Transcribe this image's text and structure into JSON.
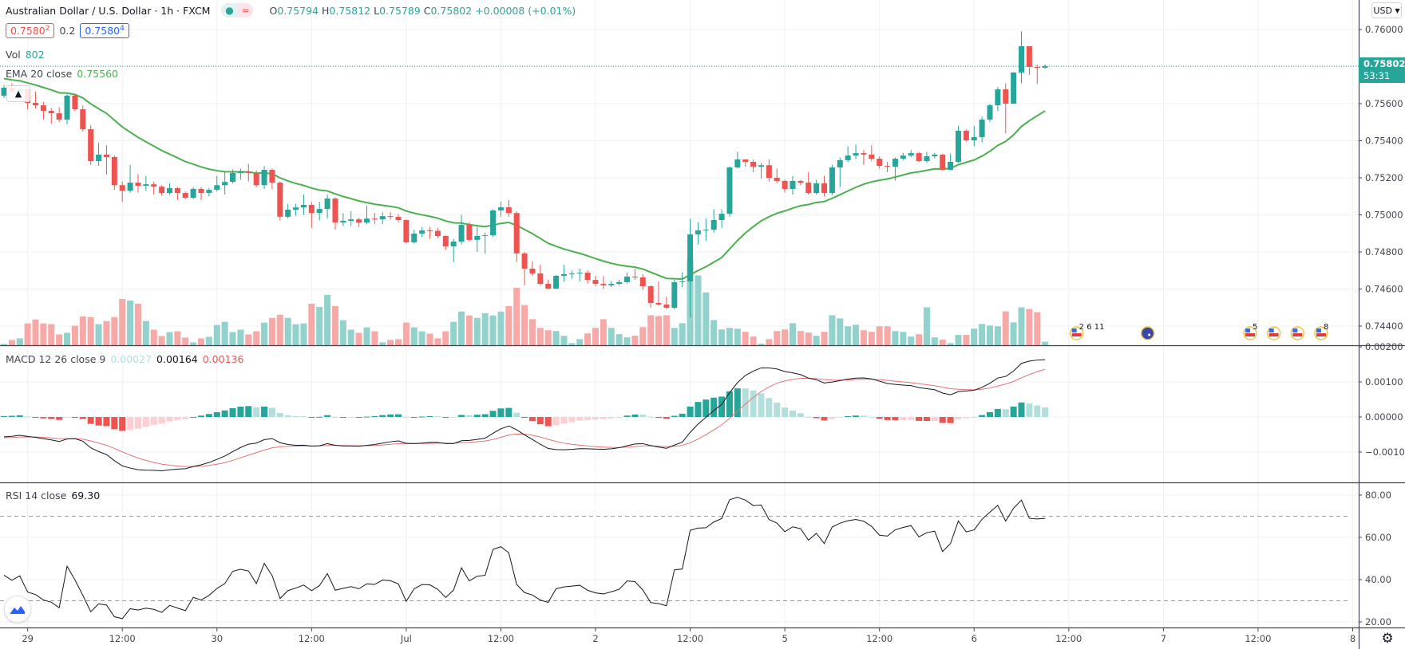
{
  "header": {
    "symbol_title": "Australian Dollar / U.S. Dollar · 1h · FXCM",
    "market_status_icons": [
      "market-open-dot-icon",
      "data-delay-icon"
    ],
    "ohlc": {
      "o_label": "O",
      "o": "0.75794",
      "h_label": "H",
      "h": "0.75812",
      "l_label": "L",
      "l": "0.75789",
      "c_label": "C",
      "c": "0.75802",
      "change": "+0.00008 (+0.01%)"
    },
    "bid": {
      "main": "0.7580",
      "pip": "2"
    },
    "spread": "0.2",
    "ask": {
      "main": "0.7580",
      "pip": "4"
    },
    "vol_label": "Vol",
    "vol_value": "802",
    "ema_label": "EMA 20 close",
    "ema_value": "0.75560"
  },
  "price_axis": {
    "currency_button": "USD",
    "ticks": [
      "0.76000",
      "0.75600",
      "0.75400",
      "0.75200",
      "0.75000",
      "0.74800",
      "0.74600",
      "0.74400"
    ],
    "current_price": "0.75802",
    "countdown": "53:31"
  },
  "macd": {
    "label": "MACD 12 26 close 9",
    "hist": "0.00027",
    "macd": "0.00164",
    "signal": "0.00136",
    "ticks": [
      "0.00200",
      "0.00100",
      "0.00000",
      "−0.00100"
    ]
  },
  "rsi": {
    "label": "RSI 14 close",
    "value": "69.30",
    "ticks": [
      "80.00",
      "60.00",
      "40.00",
      "20.00"
    ],
    "upper_band": 70,
    "lower_band": 30
  },
  "events": [
    {
      "flag": "us",
      "labels": "2 6 11",
      "bar": 136
    },
    {
      "flag": "au",
      "labels": "",
      "bar": 145
    },
    {
      "flag": "us",
      "labels": "5",
      "bar": 158
    },
    {
      "flag": "us",
      "labels": "",
      "bar": 161
    },
    {
      "flag": "us",
      "labels": "",
      "bar": 164
    },
    {
      "flag": "us",
      "labels": "8",
      "bar": 167
    }
  ],
  "colors": {
    "up": "#26a69a",
    "down": "#ef5350",
    "ema": "#4caf50",
    "macd": "#131722",
    "signal": "#e57373",
    "rsi": "#131722",
    "grid": "#eef0f3"
  },
  "chart_data": {
    "type": "candlestick",
    "symbol": "AUDUSD",
    "interval": "1h",
    "time_ticks": [
      {
        "label": "29",
        "bar": 3
      },
      {
        "label": "12:00",
        "bar": 15
      },
      {
        "label": "30",
        "bar": 27
      },
      {
        "label": "12:00",
        "bar": 39
      },
      {
        "label": "Jul",
        "bar": 51
      },
      {
        "label": "12:00",
        "bar": 63
      },
      {
        "label": "2",
        "bar": 75
      },
      {
        "label": "12:00",
        "bar": 87
      },
      {
        "label": "5",
        "bar": 99
      },
      {
        "label": "12:00",
        "bar": 111
      },
      {
        "label": "6",
        "bar": 123
      },
      {
        "label": "12:00",
        "bar": 135
      },
      {
        "label": "7",
        "bar": 147
      },
      {
        "label": "12:00",
        "bar": 159
      },
      {
        "label": "8",
        "bar": 171
      }
    ],
    "ylim": [
      0.7436,
      0.7607
    ],
    "ohlc": [
      [
        0.75643,
        0.757,
        0.7563,
        0.75686
      ],
      [
        0.75686,
        0.7571,
        0.7565,
        0.75665
      ],
      [
        0.75665,
        0.7569,
        0.7564,
        0.75677
      ],
      [
        0.75677,
        0.7569,
        0.7557,
        0.75604
      ],
      [
        0.75604,
        0.75665,
        0.75574,
        0.75591
      ],
      [
        0.75591,
        0.7561,
        0.75514,
        0.75561
      ],
      [
        0.75561,
        0.75575,
        0.75492,
        0.75548
      ],
      [
        0.75548,
        0.7558,
        0.755,
        0.75514
      ],
      [
        0.75514,
        0.7565,
        0.75488,
        0.75643
      ],
      [
        0.75643,
        0.75655,
        0.7556,
        0.7557
      ],
      [
        0.7557,
        0.7559,
        0.7545,
        0.75462
      ],
      [
        0.75462,
        0.75484,
        0.75269,
        0.7529
      ],
      [
        0.7529,
        0.7539,
        0.75264,
        0.75325
      ],
      [
        0.75325,
        0.75376,
        0.75217,
        0.75312
      ],
      [
        0.75312,
        0.7532,
        0.75135,
        0.7516
      ],
      [
        0.7516,
        0.7518,
        0.7507,
        0.7513
      ],
      [
        0.7513,
        0.75269,
        0.7512,
        0.75174
      ],
      [
        0.75174,
        0.7522,
        0.7512,
        0.75157
      ],
      [
        0.75157,
        0.7521,
        0.7513,
        0.75165
      ],
      [
        0.75165,
        0.7518,
        0.7511,
        0.75152
      ],
      [
        0.75152,
        0.7516,
        0.75105,
        0.75118
      ],
      [
        0.75118,
        0.7517,
        0.7511,
        0.75144
      ],
      [
        0.75144,
        0.7515,
        0.7508,
        0.75118
      ],
      [
        0.75118,
        0.75125,
        0.75085,
        0.75092
      ],
      [
        0.75092,
        0.7515,
        0.75085,
        0.7514
      ],
      [
        0.7514,
        0.7515,
        0.7508,
        0.75118
      ],
      [
        0.75118,
        0.75145,
        0.751,
        0.75135
      ],
      [
        0.75135,
        0.7521,
        0.75125,
        0.7516
      ],
      [
        0.7516,
        0.7523,
        0.7511,
        0.75178
      ],
      [
        0.75178,
        0.75245,
        0.7517,
        0.75226
      ],
      [
        0.75226,
        0.7525,
        0.7519,
        0.75234
      ],
      [
        0.75234,
        0.75275,
        0.7518,
        0.75226
      ],
      [
        0.75226,
        0.7524,
        0.7515,
        0.7516
      ],
      [
        0.7516,
        0.75265,
        0.7514,
        0.75243
      ],
      [
        0.75243,
        0.7525,
        0.7514,
        0.75174
      ],
      [
        0.75174,
        0.7518,
        0.7497,
        0.7499
      ],
      [
        0.7499,
        0.7506,
        0.7498,
        0.75028
      ],
      [
        0.75028,
        0.7506,
        0.74995,
        0.7504
      ],
      [
        0.7504,
        0.7511,
        0.75,
        0.75054
      ],
      [
        0.75054,
        0.7507,
        0.7493,
        0.7501
      ],
      [
        0.7501,
        0.7507,
        0.7497,
        0.75032
      ],
      [
        0.75032,
        0.7511,
        0.7498,
        0.75088
      ],
      [
        0.75088,
        0.75095,
        0.7492,
        0.74959
      ],
      [
        0.74959,
        0.7501,
        0.7494,
        0.74968
      ],
      [
        0.74968,
        0.7502,
        0.7494,
        0.74976
      ],
      [
        0.74976,
        0.74985,
        0.74935,
        0.74959
      ],
      [
        0.74959,
        0.7505,
        0.7495,
        0.7498
      ],
      [
        0.7498,
        0.7501,
        0.7495,
        0.74976
      ],
      [
        0.74976,
        0.75015,
        0.7495,
        0.74993
      ],
      [
        0.74993,
        0.75015,
        0.74975,
        0.74989
      ],
      [
        0.74989,
        0.75005,
        0.7496,
        0.74972
      ],
      [
        0.74972,
        0.74975,
        0.74845,
        0.74852
      ],
      [
        0.74852,
        0.7492,
        0.74845,
        0.74899
      ],
      [
        0.74899,
        0.74935,
        0.7488,
        0.74916
      ],
      [
        0.74916,
        0.74935,
        0.7487,
        0.74914
      ],
      [
        0.74914,
        0.7493,
        0.74875,
        0.74886
      ],
      [
        0.74886,
        0.7489,
        0.7481,
        0.7483
      ],
      [
        0.7483,
        0.7487,
        0.74745,
        0.74856
      ],
      [
        0.74856,
        0.75,
        0.7484,
        0.74946
      ],
      [
        0.74946,
        0.7496,
        0.74855,
        0.74865
      ],
      [
        0.74865,
        0.74935,
        0.748,
        0.74886
      ],
      [
        0.74886,
        0.74905,
        0.7479,
        0.7489
      ],
      [
        0.7489,
        0.7503,
        0.7488,
        0.75024
      ],
      [
        0.75024,
        0.75072,
        0.7499,
        0.75041
      ],
      [
        0.75041,
        0.7508,
        0.7499,
        0.7501
      ],
      [
        0.7501,
        0.7502,
        0.74745,
        0.74792
      ],
      [
        0.74792,
        0.748,
        0.7462,
        0.7471
      ],
      [
        0.7471,
        0.7475,
        0.7467,
        0.74684
      ],
      [
        0.74684,
        0.7473,
        0.7462,
        0.74628
      ],
      [
        0.74628,
        0.7465,
        0.746,
        0.74602
      ],
      [
        0.74602,
        0.74675,
        0.746,
        0.74671
      ],
      [
        0.74671,
        0.7473,
        0.7464,
        0.7468
      ],
      [
        0.7468,
        0.747,
        0.74655,
        0.74684
      ],
      [
        0.74684,
        0.7471,
        0.7464,
        0.74688
      ],
      [
        0.74688,
        0.747,
        0.7463,
        0.74649
      ],
      [
        0.74649,
        0.7467,
        0.74615,
        0.74628
      ],
      [
        0.74628,
        0.7467,
        0.746,
        0.7462
      ],
      [
        0.7462,
        0.74645,
        0.7461,
        0.74628
      ],
      [
        0.74628,
        0.7465,
        0.7462,
        0.74637
      ],
      [
        0.74637,
        0.7469,
        0.7463,
        0.74667
      ],
      [
        0.74667,
        0.7471,
        0.7465,
        0.74663
      ],
      [
        0.74663,
        0.7468,
        0.74595,
        0.74615
      ],
      [
        0.74615,
        0.7462,
        0.745,
        0.74525
      ],
      [
        0.74525,
        0.7464,
        0.7451,
        0.74516
      ],
      [
        0.74516,
        0.7456,
        0.7449,
        0.74499
      ],
      [
        0.74499,
        0.7465,
        0.7449,
        0.74637
      ],
      [
        0.74637,
        0.7469,
        0.7461,
        0.74641
      ],
      [
        0.74641,
        0.7498,
        0.74447,
        0.74895
      ],
      [
        0.74895,
        0.7496,
        0.7484,
        0.74916
      ],
      [
        0.74916,
        0.7498,
        0.7486,
        0.7492
      ],
      [
        0.7492,
        0.7503,
        0.74905,
        0.74972
      ],
      [
        0.74972,
        0.7503,
        0.7493,
        0.75006
      ],
      [
        0.75006,
        0.75262,
        0.7499,
        0.75256
      ],
      [
        0.75256,
        0.7534,
        0.7525,
        0.75299
      ],
      [
        0.75299,
        0.753,
        0.7526,
        0.75286
      ],
      [
        0.75286,
        0.753,
        0.7523,
        0.7526
      ],
      [
        0.7526,
        0.7528,
        0.75195,
        0.75268
      ],
      [
        0.75268,
        0.753,
        0.7518,
        0.752
      ],
      [
        0.752,
        0.7525,
        0.7517,
        0.75183
      ],
      [
        0.75183,
        0.7519,
        0.7512,
        0.7514
      ],
      [
        0.7514,
        0.7521,
        0.7511,
        0.75183
      ],
      [
        0.75183,
        0.7519,
        0.7516,
        0.75174
      ],
      [
        0.75174,
        0.7523,
        0.7511,
        0.75118
      ],
      [
        0.75118,
        0.7519,
        0.7511,
        0.7517
      ],
      [
        0.7517,
        0.7521,
        0.751,
        0.75118
      ],
      [
        0.75118,
        0.7527,
        0.75105,
        0.75256
      ],
      [
        0.75256,
        0.7531,
        0.7515,
        0.75295
      ],
      [
        0.75295,
        0.7537,
        0.75285,
        0.7532
      ],
      [
        0.7532,
        0.7538,
        0.753,
        0.75333
      ],
      [
        0.75333,
        0.7535,
        0.7527,
        0.75325
      ],
      [
        0.75325,
        0.75375,
        0.7529,
        0.75303
      ],
      [
        0.75303,
        0.75315,
        0.7525,
        0.75264
      ],
      [
        0.75264,
        0.75285,
        0.7523,
        0.7526
      ],
      [
        0.7526,
        0.7531,
        0.75185,
        0.75303
      ],
      [
        0.75303,
        0.75335,
        0.75295,
        0.7532
      ],
      [
        0.7532,
        0.7535,
        0.7531,
        0.75333
      ],
      [
        0.75333,
        0.7534,
        0.75285,
        0.7529
      ],
      [
        0.7529,
        0.7534,
        0.7528,
        0.75316
      ],
      [
        0.75316,
        0.75335,
        0.75305,
        0.75325
      ],
      [
        0.75325,
        0.7533,
        0.7524,
        0.75243
      ],
      [
        0.75243,
        0.7533,
        0.7524,
        0.75286
      ],
      [
        0.75286,
        0.7548,
        0.7528,
        0.75454
      ],
      [
        0.75454,
        0.7546,
        0.75395,
        0.75402
      ],
      [
        0.75402,
        0.7548,
        0.7537,
        0.75419
      ],
      [
        0.75419,
        0.7553,
        0.7539,
        0.75514
      ],
      [
        0.75514,
        0.756,
        0.755,
        0.75591
      ],
      [
        0.75591,
        0.7569,
        0.7556,
        0.75677
      ],
      [
        0.75677,
        0.7571,
        0.7544,
        0.756
      ],
      [
        0.756,
        0.7577,
        0.756,
        0.75768
      ],
      [
        0.75768,
        0.7599,
        0.7571,
        0.7591
      ],
      [
        0.7591,
        0.7591,
        0.75755,
        0.75798
      ],
      [
        0.75798,
        0.7581,
        0.75705,
        0.75794
      ],
      [
        0.75794,
        0.75812,
        0.75789,
        0.75802
      ]
    ],
    "volume": [
      306,
      1206,
      1566,
      4986,
      5886,
      4986,
      4806,
      2466,
      2826,
      4446,
      6606,
      6426,
      4806,
      5526,
      6426,
      10566,
      10206,
      9486,
      5526,
      3546,
      2106,
      3006,
      3186,
      1746,
      666,
      1566,
      1926,
      4626,
      5346,
      3006,
      3546,
      2466,
      3186,
      5166,
      6246,
      6966,
      6246,
      4806,
      4986,
      9486,
      8766,
      11466,
      8946,
      5706,
      3546,
      2826,
      4086,
      3186,
      666,
      1206,
      1386,
      5166,
      4086,
      3186,
      2646,
      1566,
      3186,
      5346,
      7686,
      6786,
      6246,
      7326,
      6786,
      7686,
      8946,
      13140,
      9180,
      5940,
      3960,
      3420,
      3240,
      2160,
      486,
      1386,
      2700,
      3960,
      5940,
      3960,
      2520,
      1800,
      2160,
      4140,
      6840,
      6660,
      6840,
      3960,
      5040,
      19620,
      15930,
      12060,
      5760,
      3600,
      3960,
      3780,
      3060,
      1980,
      360,
      1386,
      3240,
      3600,
      5040,
      3240,
      2880,
      2160,
      3060,
      6840,
      6120,
      4320,
      4680,
      3420,
      3060,
      4320,
      4320,
      3240,
      3060,
      1980,
      2520,
      8640,
      1800,
      1260,
      486,
      2340,
      2340,
      3780,
      4860,
      4500,
      4320,
      7740,
      5220,
      8640,
      8280,
      7560,
      802
    ],
    "indicators": {
      "ema_period": 20,
      "macd": [
        12,
        26,
        9
      ],
      "rsi_period": 14
    }
  }
}
